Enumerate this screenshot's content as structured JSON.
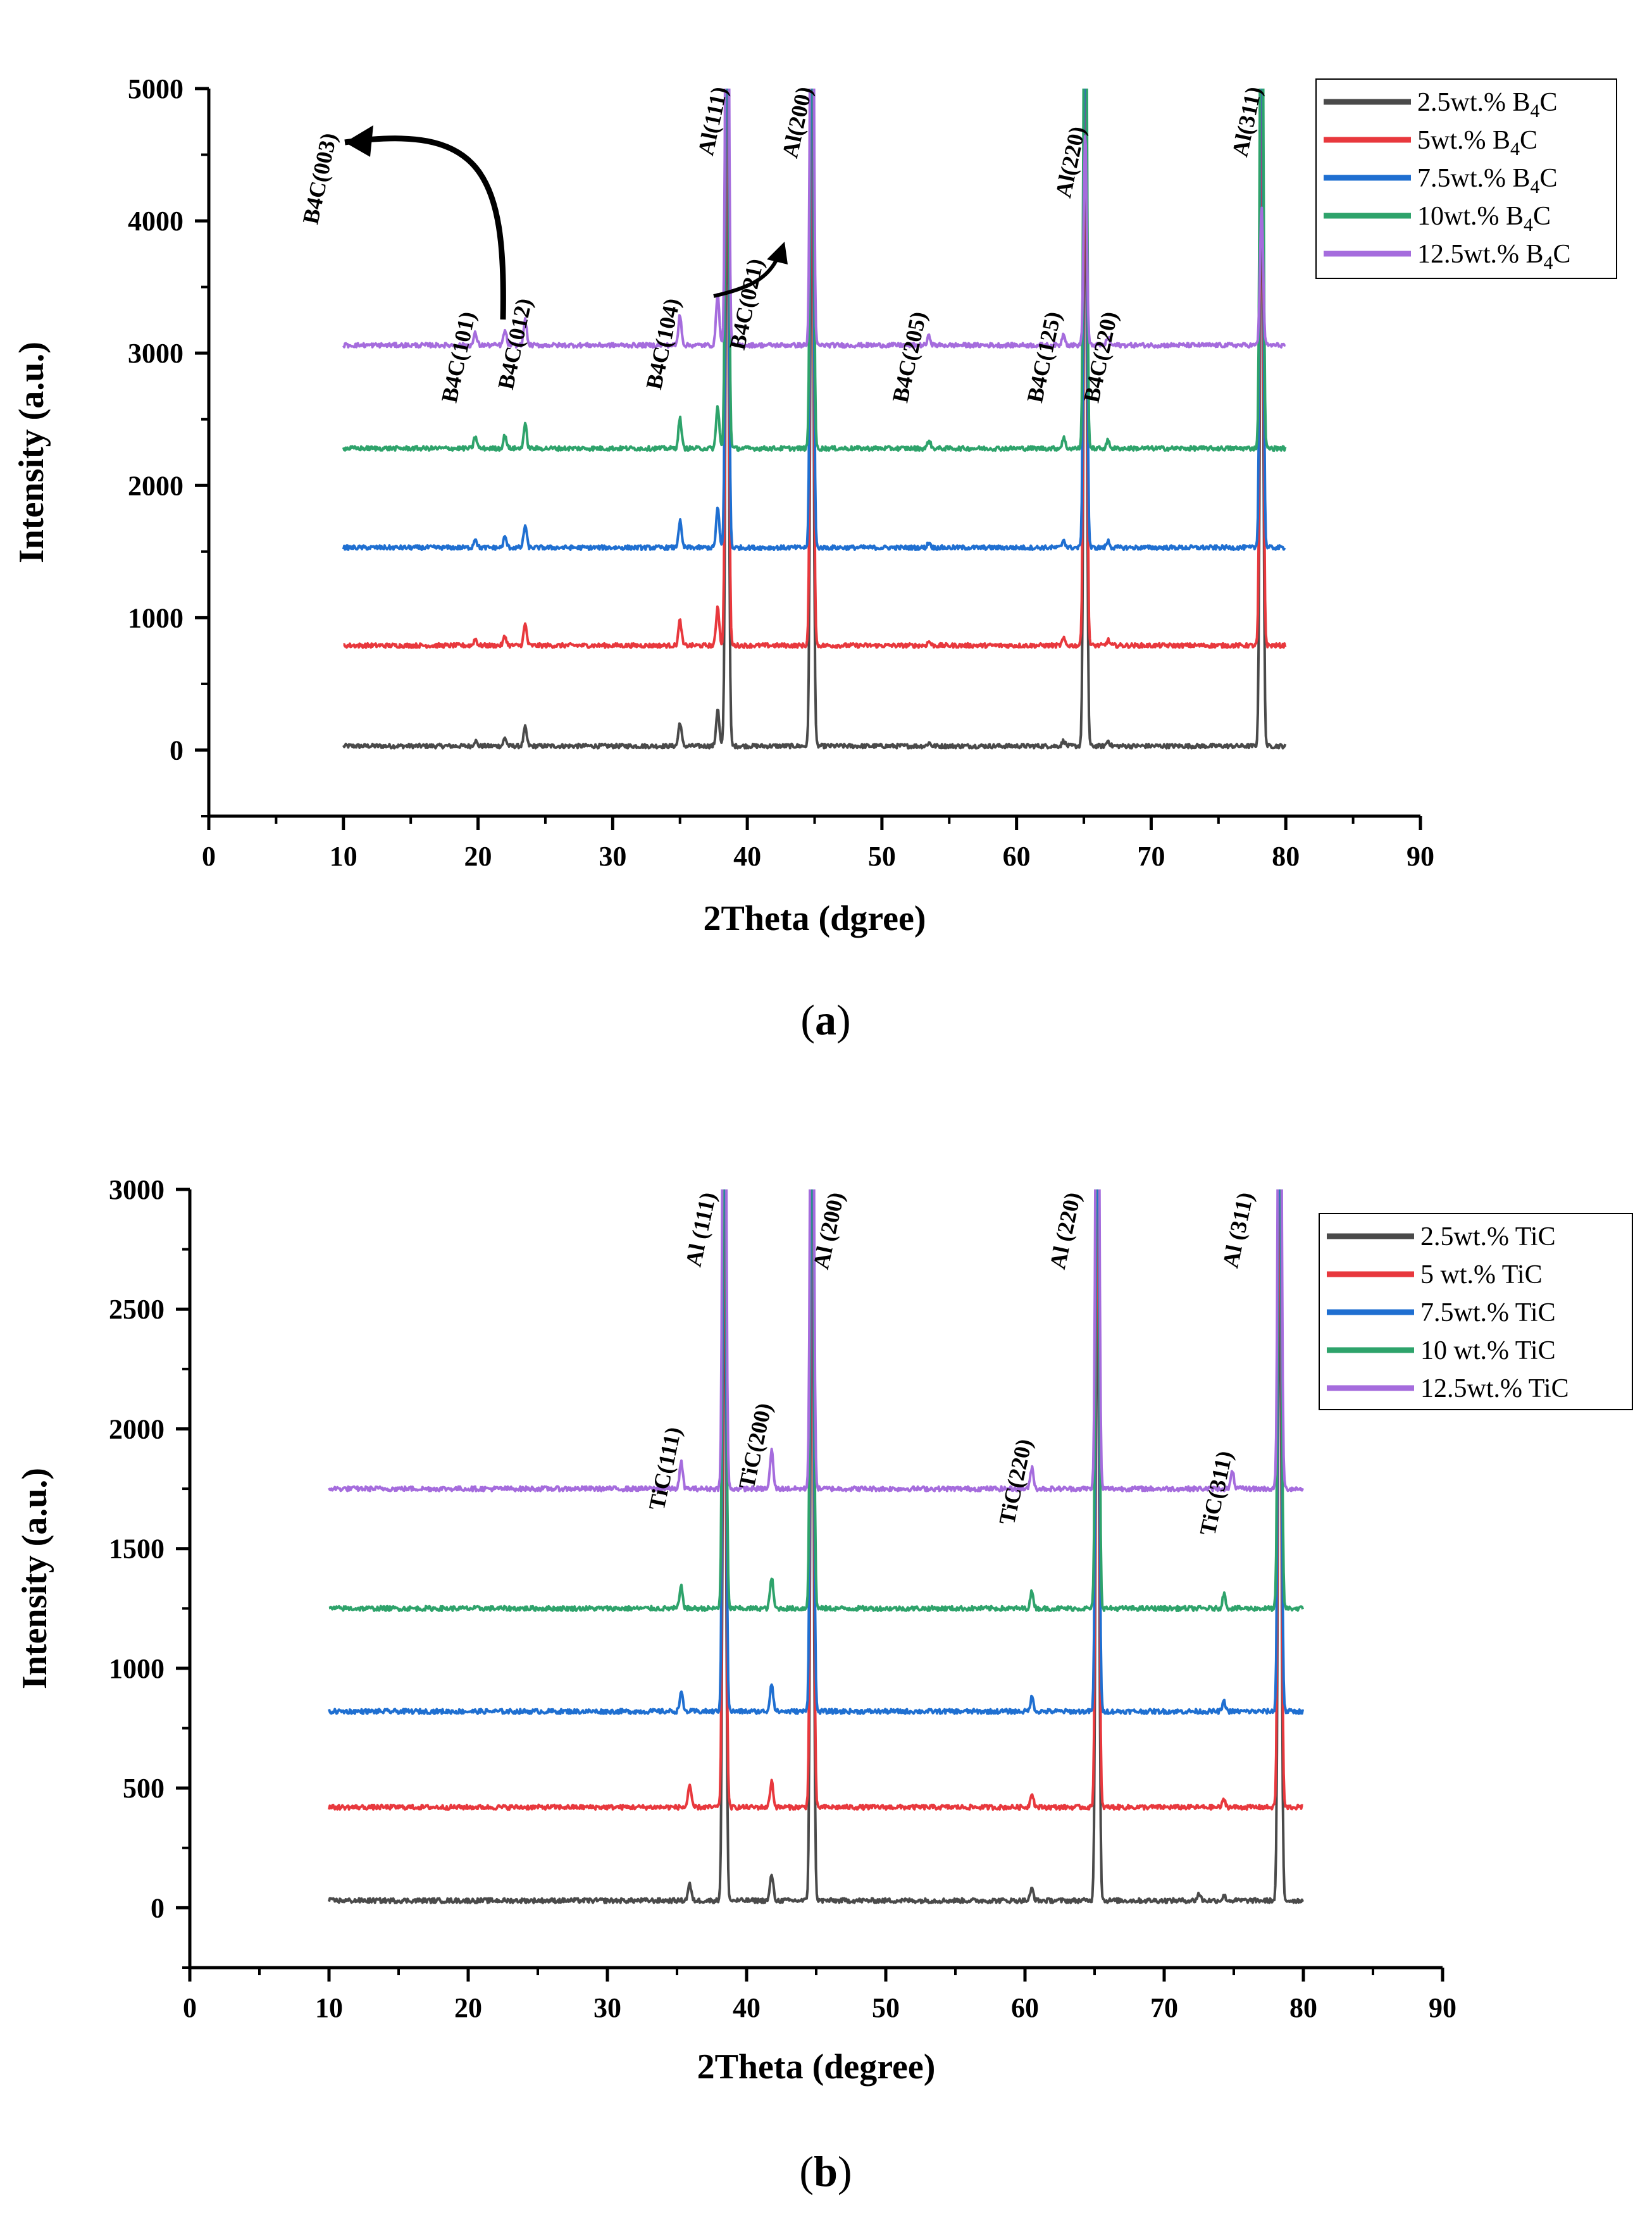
{
  "chart_data": [
    {
      "type": "line",
      "panel_label": "(a)",
      "xlabel": "2Theta (dgree)",
      "ylabel": "Intensity (a.u.)",
      "xlim": [
        0,
        90
      ],
      "ylim": [
        -500,
        5000
      ],
      "xticks": [
        0,
        10,
        20,
        30,
        40,
        50,
        60,
        70,
        80,
        90
      ],
      "yticks": [
        0,
        1000,
        2000,
        3000,
        4000,
        5000
      ],
      "legend_position": "top-right",
      "grid": false,
      "x_range": [
        10,
        80
      ],
      "series": [
        {
          "name": "2.5wt.% B4C",
          "legend_main": "2.5wt.% B",
          "legend_sub": "4",
          "legend_tail": "C",
          "color": "#4a4a4a",
          "offset": 30,
          "peaks": [
            [
              19.8,
              40
            ],
            [
              22.0,
              60
            ],
            [
              23.5,
              140
            ],
            [
              35.0,
              180
            ],
            [
              37.8,
              280
            ],
            [
              38.5,
              5000
            ],
            [
              44.8,
              5000
            ],
            [
              53.5,
              25
            ],
            [
              63.5,
              40
            ],
            [
              65.1,
              5000
            ],
            [
              66.8,
              40
            ],
            [
              78.2,
              5000
            ]
          ]
        },
        {
          "name": "5wt.% B4C",
          "legend_main": "5wt.% B",
          "legend_sub": "4",
          "legend_tail": "C",
          "color": "#e8383d",
          "offset": 790,
          "peaks": [
            [
              19.8,
              50
            ],
            [
              22.0,
              70
            ],
            [
              23.5,
              160
            ],
            [
              35.0,
              190
            ],
            [
              37.8,
              300
            ],
            [
              38.5,
              5000
            ],
            [
              44.8,
              5000
            ],
            [
              53.5,
              30
            ],
            [
              63.5,
              50
            ],
            [
              65.1,
              5000
            ],
            [
              66.8,
              40
            ],
            [
              78.2,
              5000
            ]
          ]
        },
        {
          "name": "7.5wt.% B4C",
          "legend_main": "7.5wt.% B",
          "legend_sub": "4",
          "legend_tail": "C",
          "color": "#1f6fd1",
          "offset": 1530,
          "peaks": [
            [
              19.8,
              70
            ],
            [
              22.0,
              80
            ],
            [
              23.5,
              170
            ],
            [
              35.0,
              200
            ],
            [
              37.8,
              300
            ],
            [
              38.5,
              5000
            ],
            [
              44.8,
              5000
            ],
            [
              53.5,
              40
            ],
            [
              63.5,
              60
            ],
            [
              65.1,
              5000
            ],
            [
              66.8,
              50
            ],
            [
              78.2,
              5000
            ]
          ]
        },
        {
          "name": "10wt.% B4C",
          "legend_main": "10wt.% B",
          "legend_sub": "4",
          "legend_tail": "C",
          "color": "#2ea36b",
          "offset": 2280,
          "peaks": [
            [
              19.8,
              90
            ],
            [
              22.0,
              100
            ],
            [
              23.5,
              180
            ],
            [
              35.0,
              230
            ],
            [
              37.8,
              320
            ],
            [
              38.5,
              5000
            ],
            [
              44.8,
              5000
            ],
            [
              53.5,
              60
            ],
            [
              63.5,
              80
            ],
            [
              65.1,
              5000
            ],
            [
              66.8,
              60
            ],
            [
              78.2,
              5000
            ]
          ]
        },
        {
          "name": "12.5wt.% B4C",
          "legend_main": "12.5wt.% B",
          "legend_sub": "4",
          "legend_tail": "C",
          "color": "#a56cdd",
          "offset": 3060,
          "peaks": [
            [
              19.8,
              90
            ],
            [
              22.0,
              110
            ],
            [
              23.5,
              190
            ],
            [
              35.0,
              230
            ],
            [
              37.8,
              400
            ],
            [
              38.5,
              5000
            ],
            [
              44.8,
              5000
            ],
            [
              53.5,
              70
            ],
            [
              63.5,
              90
            ],
            [
              65.1,
              1600
            ],
            [
              66.8,
              60
            ],
            [
              78.2,
              1050
            ]
          ]
        }
      ],
      "annotations": [
        {
          "text": "Al(111)",
          "x": 38.5,
          "y": 5000
        },
        {
          "text": "Al(200)",
          "x": 44.8,
          "y": 5000
        },
        {
          "text": "Al(220)",
          "x": 65.1,
          "y": 4700
        },
        {
          "text": "Al(311)",
          "x": 78.2,
          "y": 5000
        },
        {
          "text": "B4C(003)",
          "x": 9.5,
          "y": 4650
        },
        {
          "text": "B4C(101)",
          "x": 19.8,
          "y": 3300
        },
        {
          "text": "B4C(012)",
          "x": 24.0,
          "y": 3400
        },
        {
          "text": "B4C(104)",
          "x": 35.0,
          "y": 3400
        },
        {
          "text": "B4C(021)",
          "x": 41.2,
          "y": 3700
        },
        {
          "text": "B4C(205)",
          "x": 53.3,
          "y": 3300
        },
        {
          "text": "B4C(125)",
          "x": 63.3,
          "y": 3300
        },
        {
          "text": "B4C(220)",
          "x": 67.5,
          "y": 3300
        }
      ]
    },
    {
      "type": "line",
      "panel_label": "(b)",
      "xlabel": "2Theta (degree)",
      "ylabel": "Intensity (a.u.)",
      "xlim": [
        0,
        90
      ],
      "ylim": [
        -250,
        3000
      ],
      "xticks": [
        0,
        10,
        20,
        30,
        40,
        50,
        60,
        70,
        80,
        90
      ],
      "yticks": [
        0,
        500,
        1000,
        1500,
        2000,
        2500,
        3000
      ],
      "legend_position": "top-right",
      "grid": false,
      "x_range": [
        10,
        80
      ],
      "series": [
        {
          "name": "2.5wt.% TiC",
          "legend_main": "2.5wt.% TiC",
          "color": "#4a4a4a",
          "offset": 30,
          "peaks": [
            [
              35.9,
              70
            ],
            [
              38.4,
              3000
            ],
            [
              41.8,
              110
            ],
            [
              44.7,
              3000
            ],
            [
              60.5,
              50
            ],
            [
              65.2,
              3000
            ],
            [
              72.5,
              30
            ],
            [
              74.3,
              20
            ],
            [
              78.3,
              3000
            ]
          ]
        },
        {
          "name": "5 wt.% TiC",
          "legend_main": "5  wt.% TiC",
          "color": "#e8383d",
          "offset": 420,
          "peaks": [
            [
              35.9,
              90
            ],
            [
              38.4,
              3000
            ],
            [
              41.8,
              110
            ],
            [
              44.7,
              3000
            ],
            [
              60.5,
              60
            ],
            [
              65.2,
              3000
            ],
            [
              74.3,
              30
            ],
            [
              78.3,
              3000
            ]
          ]
        },
        {
          "name": "7.5wt.% TiC",
          "legend_main": "7.5wt.% TiC",
          "color": "#1f6fd1",
          "offset": 820,
          "peaks": [
            [
              35.3,
              80
            ],
            [
              38.4,
              3000
            ],
            [
              41.8,
              120
            ],
            [
              44.7,
              3000
            ],
            [
              60.5,
              60
            ],
            [
              65.2,
              3000
            ],
            [
              74.3,
              40
            ],
            [
              78.3,
              3000
            ]
          ]
        },
        {
          "name": "10 wt.% TiC",
          "legend_main": "10 wt.% TiC",
          "color": "#2ea36b",
          "offset": 1250,
          "peaks": [
            [
              35.3,
              90
            ],
            [
              38.4,
              3000
            ],
            [
              41.8,
              130
            ],
            [
              44.7,
              3000
            ],
            [
              60.5,
              70
            ],
            [
              65.2,
              3000
            ],
            [
              74.3,
              60
            ],
            [
              78.3,
              3000
            ]
          ]
        },
        {
          "name": "12.5wt.% TiC",
          "legend_main": "12.5wt.% TiC",
          "color": "#a56cdd",
          "offset": 1750,
          "peaks": [
            [
              35.3,
              110
            ],
            [
              38.4,
              3000
            ],
            [
              41.8,
              160
            ],
            [
              44.7,
              3000
            ],
            [
              60.5,
              90
            ],
            [
              65.2,
              3000
            ],
            [
              74.9,
              70
            ],
            [
              78.3,
              3000
            ]
          ]
        }
      ],
      "annotations": [
        {
          "text": "Al (111)",
          "x": 37.8,
          "y": 2980
        },
        {
          "text": "Al (200)",
          "x": 47.0,
          "y": 2980
        },
        {
          "text": "Al (220)",
          "x": 64.0,
          "y": 2980
        },
        {
          "text": "Al (311)",
          "x": 76.4,
          "y": 2980
        },
        {
          "text": "TiC(111)",
          "x": 35.3,
          "y": 2000
        },
        {
          "text": "TiC(200)",
          "x": 41.8,
          "y": 2100
        },
        {
          "text": "TiC(220)",
          "x": 60.5,
          "y": 1950
        },
        {
          "text": "TiC(311)",
          "x": 74.9,
          "y": 1900
        }
      ]
    }
  ]
}
